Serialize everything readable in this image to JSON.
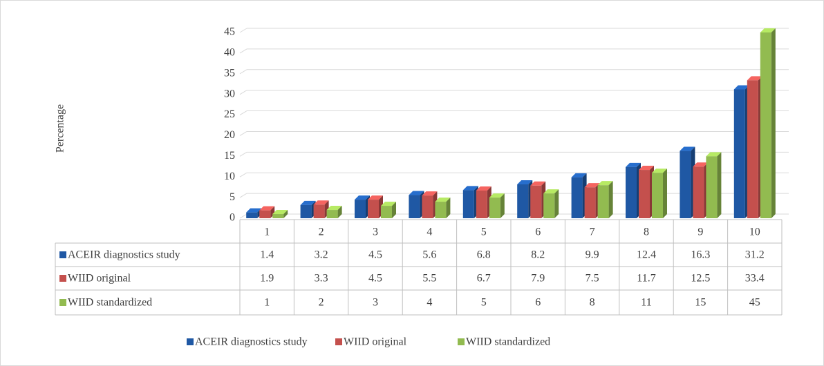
{
  "chart_data": {
    "type": "bar3d",
    "y_label": "Percentage",
    "categories": [
      "1",
      "2",
      "3",
      "4",
      "5",
      "6",
      "7",
      "8",
      "9",
      "10"
    ],
    "series": [
      {
        "name": "ACEIR diagnostics study",
        "color": "#1f58a4",
        "values": [
          1.4,
          3.2,
          4.5,
          5.6,
          6.8,
          8.2,
          9.9,
          12.4,
          16.3,
          31.2
        ]
      },
      {
        "name": "WIID original",
        "color": "#c4504d",
        "values": [
          1.9,
          3.3,
          4.5,
          5.5,
          6.7,
          7.9,
          7.5,
          11.7,
          12.5,
          33.4
        ]
      },
      {
        "name": "WIID standardized",
        "color": "#92bb50",
        "values": [
          1,
          2,
          3,
          4,
          5,
          6,
          8,
          11,
          15,
          45
        ]
      }
    ],
    "ylim": [
      0,
      45
    ],
    "yticks": [
      0,
      5,
      10,
      15,
      20,
      25,
      30,
      35,
      40,
      45
    ],
    "grid": true,
    "legend": "bottom"
  }
}
